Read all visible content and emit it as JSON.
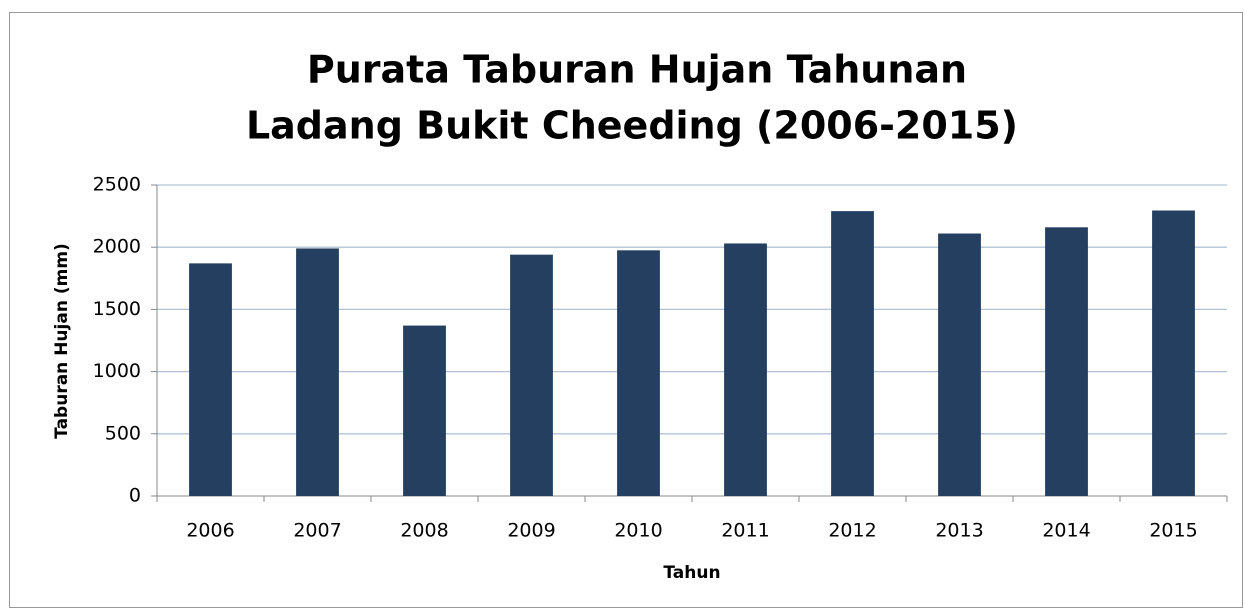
{
  "chart_data": {
    "type": "bar",
    "title": [
      "Purata Taburan Hujan Tahunan",
      "Ladang Bukit Cheeding (2006-2015)"
    ],
    "x_label": "Tahun",
    "y_label": "Taburan Hujan (mm)",
    "categories": [
      "2006",
      "2007",
      "2008",
      "2009",
      "2010",
      "2011",
      "2012",
      "2013",
      "2014",
      "2015"
    ],
    "values": [
      1870,
      1990,
      1370,
      1940,
      1975,
      2030,
      2290,
      2110,
      2160,
      2295
    ],
    "color": "#243f60",
    "ylim": [
      0,
      2500
    ],
    "yticks": [
      0,
      500,
      1000,
      1500,
      2000,
      2500
    ],
    "grid": true
  }
}
